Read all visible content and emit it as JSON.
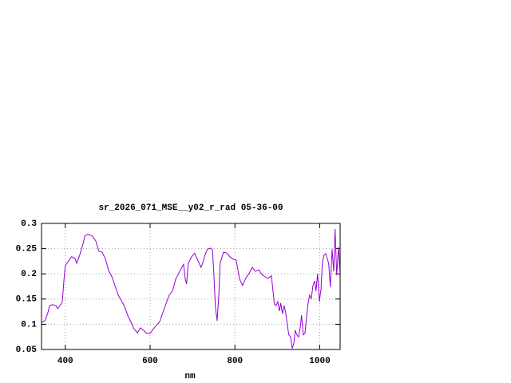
{
  "chart_data": {
    "type": "line",
    "title": "sr_2026_071_MSE__y02_r_rad 05-36-00",
    "x_label": "nm",
    "x": [
      344,
      352,
      359,
      363,
      370,
      378,
      382,
      389,
      393,
      397,
      400,
      408,
      415,
      423,
      427,
      434,
      442,
      446,
      453,
      464,
      472,
      479,
      487,
      495,
      502,
      510,
      517,
      525,
      532,
      540,
      547,
      555,
      562,
      570,
      577,
      585,
      592,
      600,
      607,
      615,
      622,
      630,
      638,
      645,
      653,
      660,
      668,
      675,
      679,
      683,
      686,
      690,
      698,
      705,
      713,
      720,
      724,
      728,
      735,
      743,
      747,
      750,
      754,
      758,
      762,
      765,
      773,
      781,
      788,
      796,
      803,
      811,
      818,
      826,
      833,
      841,
      848,
      856,
      863,
      871,
      878,
      886,
      893,
      897,
      901,
      905,
      908,
      912,
      916,
      920,
      923,
      927,
      931,
      935,
      939,
      942,
      946,
      950,
      954,
      957,
      961,
      965,
      969,
      972,
      976,
      980,
      984,
      988,
      991,
      995,
      999,
      1003,
      1006,
      1010,
      1014,
      1018,
      1021,
      1025,
      1029,
      1033,
      1036,
      1040,
      1044,
      1048
    ],
    "series": [
      {
        "color": "#9400d3",
        "values": [
          0.104,
          0.107,
          0.123,
          0.137,
          0.139,
          0.137,
          0.131,
          0.139,
          0.145,
          0.189,
          0.216,
          0.226,
          0.234,
          0.23,
          0.221,
          0.237,
          0.26,
          0.275,
          0.279,
          0.275,
          0.265,
          0.245,
          0.243,
          0.229,
          0.207,
          0.194,
          0.177,
          0.158,
          0.147,
          0.135,
          0.118,
          0.104,
          0.091,
          0.083,
          0.093,
          0.088,
          0.082,
          0.082,
          0.09,
          0.098,
          0.104,
          0.123,
          0.142,
          0.158,
          0.166,
          0.189,
          0.202,
          0.213,
          0.219,
          0.189,
          0.18,
          0.221,
          0.234,
          0.241,
          0.226,
          0.213,
          0.221,
          0.234,
          0.249,
          0.251,
          0.248,
          0.205,
          0.134,
          0.107,
          0.158,
          0.221,
          0.243,
          0.241,
          0.234,
          0.229,
          0.227,
          0.189,
          0.177,
          0.192,
          0.2,
          0.213,
          0.205,
          0.208,
          0.199,
          0.194,
          0.191,
          0.196,
          0.14,
          0.137,
          0.145,
          0.126,
          0.142,
          0.121,
          0.137,
          0.121,
          0.102,
          0.079,
          0.075,
          0.052,
          0.063,
          0.088,
          0.079,
          0.075,
          0.094,
          0.118,
          0.079,
          0.082,
          0.115,
          0.139,
          0.158,
          0.151,
          0.177,
          0.186,
          0.166,
          0.2,
          0.145,
          0.17,
          0.221,
          0.237,
          0.24,
          0.229,
          0.221,
          0.174,
          0.249,
          0.205,
          0.289,
          0.197,
          0.253,
          0.202
        ]
      }
    ],
    "xlim": [
      344,
      1048
    ],
    "xticks": [
      400,
      600,
      800,
      1000
    ],
    "ylim": [
      0.05,
      0.3
    ],
    "yticks": [
      0.05,
      0.1,
      0.15,
      0.2,
      0.25,
      0.3
    ],
    "grid": true
  }
}
